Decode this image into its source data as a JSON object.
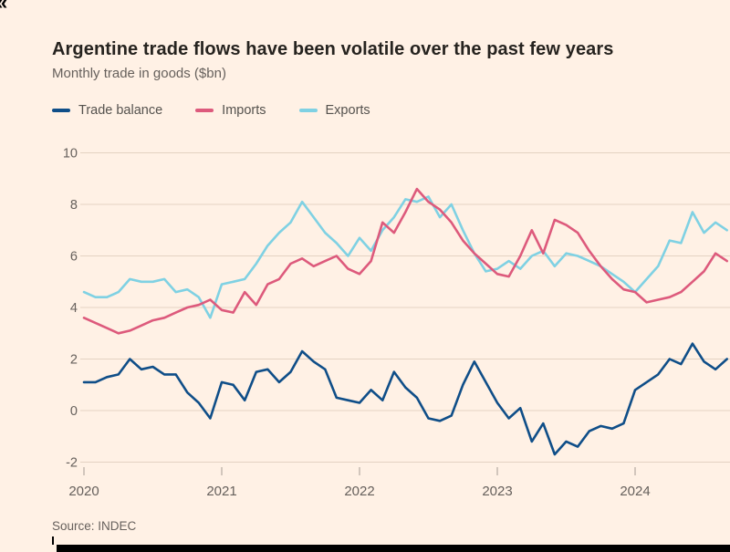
{
  "page": {
    "corner_glyph": "«",
    "title": "Argentine trade flows have been volatile over the past few years",
    "subtitle": "Monthly trade in goods ($bn)",
    "source": "Source: INDEC"
  },
  "colors": {
    "background": "#fff1e5",
    "trade_balance": "#0f4e88",
    "imports": "#dd5a7c",
    "exports": "#7fd1e3",
    "gridline": "#e4d2c2",
    "axis_text": "#66605c"
  },
  "legend": [
    {
      "label": "Trade balance",
      "color": "#0f4e88"
    },
    {
      "label": "Imports",
      "color": "#dd5a7c"
    },
    {
      "label": "Exports",
      "color": "#7fd1e3"
    }
  ],
  "chart_data": {
    "type": "line",
    "title": "Argentine trade flows have been volatile over the past few years",
    "subtitle": "Monthly trade in goods ($bn)",
    "source": "Source: INDEC",
    "x_unit": "month",
    "x_start": "2020-01",
    "x_tick_labels": [
      "2020",
      "2021",
      "2022",
      "2023",
      "2024"
    ],
    "y_ticks": [
      -2,
      0,
      2,
      4,
      6,
      8,
      10
    ],
    "ylim": [
      -2,
      10
    ],
    "grid": "horizontal",
    "legend_position": "top",
    "series": [
      {
        "name": "Trade balance",
        "color": "#0f4e88",
        "values": [
          1.1,
          1.1,
          1.3,
          1.4,
          2.0,
          1.6,
          1.7,
          1.4,
          1.4,
          0.7,
          0.3,
          -0.3,
          1.1,
          1.0,
          0.4,
          1.5,
          1.6,
          1.1,
          1.5,
          2.3,
          1.9,
          1.6,
          0.5,
          0.4,
          0.3,
          0.8,
          0.4,
          1.5,
          0.9,
          0.5,
          -0.3,
          -0.4,
          -0.2,
          1.0,
          1.9,
          1.1,
          0.3,
          -0.3,
          0.1,
          -1.2,
          -0.5,
          -1.7,
          -1.2,
          -1.4,
          -0.8,
          -0.6,
          -0.7,
          -0.5,
          0.8,
          1.1,
          1.4,
          2.0,
          1.8,
          2.6,
          1.9,
          1.6,
          2.0
        ]
      },
      {
        "name": "Imports",
        "color": "#dd5a7c",
        "values": [
          3.6,
          3.4,
          3.2,
          3.0,
          3.1,
          3.3,
          3.5,
          3.6,
          3.8,
          4.0,
          4.1,
          4.3,
          3.9,
          3.8,
          4.6,
          4.1,
          4.9,
          5.1,
          5.7,
          5.9,
          5.6,
          5.8,
          6.0,
          5.5,
          5.3,
          5.8,
          7.3,
          6.9,
          7.7,
          8.6,
          8.1,
          7.8,
          7.3,
          6.6,
          6.1,
          5.7,
          5.3,
          5.2,
          6.0,
          7.0,
          6.1,
          7.4,
          7.2,
          6.9,
          6.2,
          5.6,
          5.1,
          4.7,
          4.6,
          4.2,
          4.3,
          4.4,
          4.6,
          5.0,
          5.4,
          6.1,
          5.8
        ]
      },
      {
        "name": "Exports",
        "color": "#7fd1e3",
        "values": [
          4.6,
          4.4,
          4.4,
          4.6,
          5.1,
          5.0,
          5.0,
          5.1,
          4.6,
          4.7,
          4.4,
          3.6,
          4.9,
          5.0,
          5.1,
          5.7,
          6.4,
          6.9,
          7.3,
          8.1,
          7.5,
          6.9,
          6.5,
          6.0,
          6.7,
          6.2,
          7.0,
          7.5,
          8.2,
          8.1,
          8.3,
          7.5,
          8.0,
          7.0,
          6.1,
          5.4,
          5.5,
          5.8,
          5.5,
          6.0,
          6.2,
          5.6,
          6.1,
          6.0,
          5.8,
          5.6,
          5.3,
          5.0,
          4.6,
          5.1,
          5.6,
          6.6,
          6.5,
          7.7,
          6.9,
          7.3,
          7.0
        ]
      }
    ]
  }
}
